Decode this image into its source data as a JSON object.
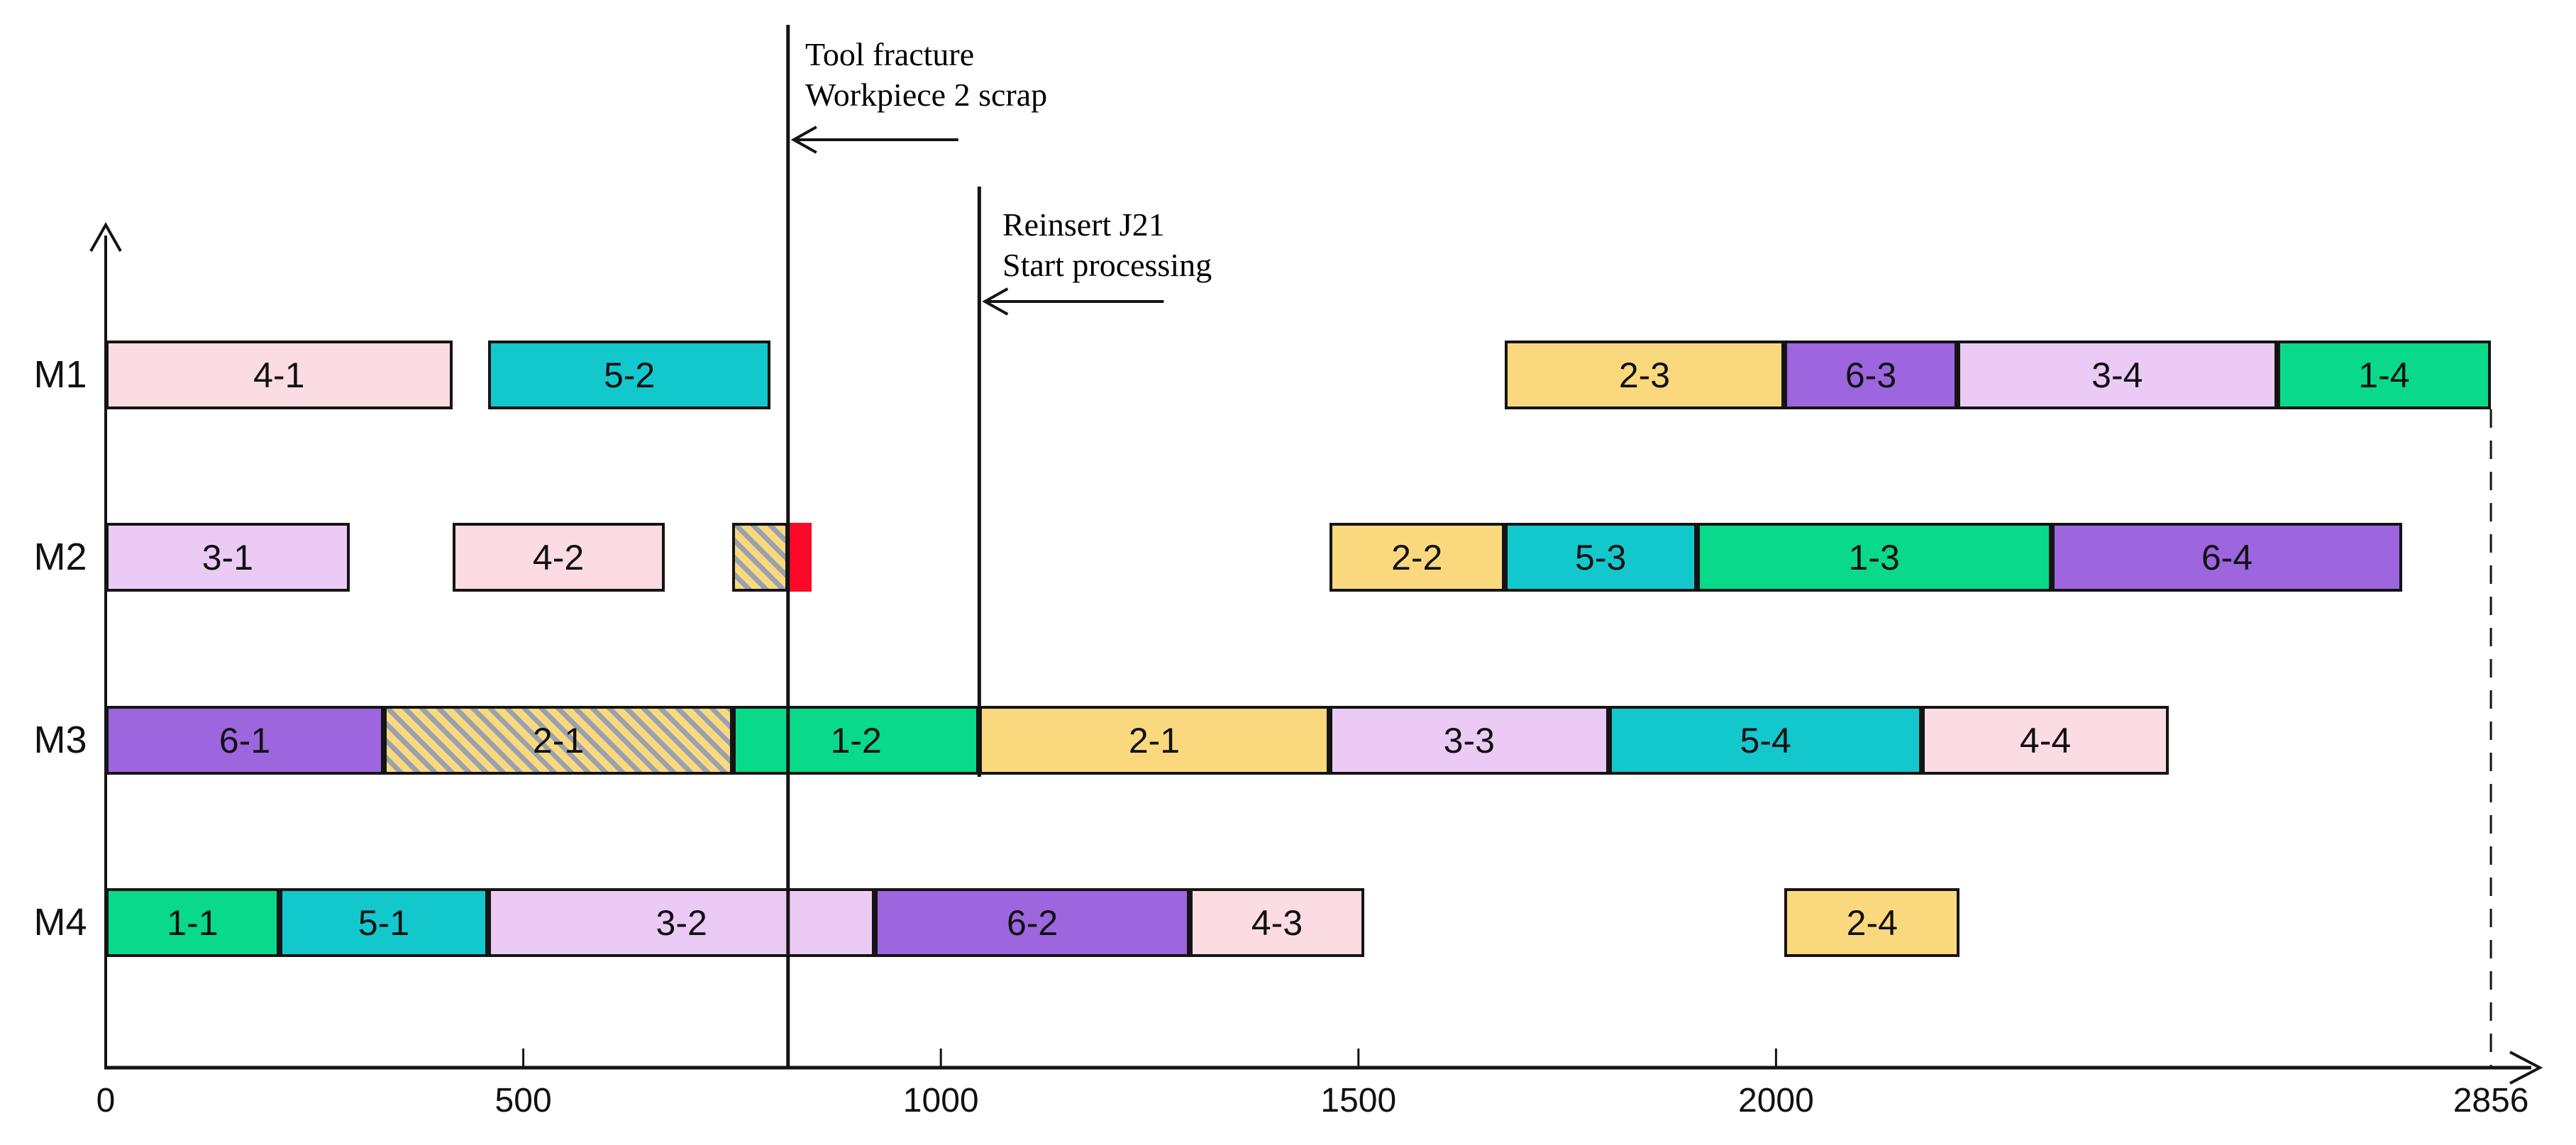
{
  "chart_data": {
    "type": "gantt",
    "title": "",
    "xlabel": "",
    "ylabel": "",
    "x_range": [
      0,
      2856
    ],
    "grid": false,
    "machines": [
      "M1",
      "M2",
      "M3",
      "M4"
    ],
    "x_axis": {
      "ticks": [
        {
          "v": 0,
          "label": "0",
          "mark": false
        },
        {
          "v": 500,
          "label": "500",
          "mark": true
        },
        {
          "v": 1000,
          "label": "1000",
          "mark": true
        },
        {
          "v": 1500,
          "label": "1500",
          "mark": true
        },
        {
          "v": 2000,
          "label": "2000",
          "mark": true
        },
        {
          "v": 2856,
          "label": "2856",
          "mark": false
        }
      ]
    },
    "bars": [
      {
        "machine": "M1",
        "label": "4-1",
        "start": 0,
        "end": 415,
        "color": "#FBDCE2"
      },
      {
        "machine": "M1",
        "label": "5-2",
        "start": 458,
        "end": 796,
        "color": "#13C8CD"
      },
      {
        "machine": "M1",
        "label": "2-3",
        "start": 1675,
        "end": 2010,
        "color": "#FAD97E"
      },
      {
        "machine": "M1",
        "label": "6-3",
        "start": 2010,
        "end": 2217,
        "color": "#9D65DE"
      },
      {
        "machine": "M1",
        "label": "3-4",
        "start": 2217,
        "end": 2600,
        "color": "#EBCBF5"
      },
      {
        "machine": "M1",
        "label": "1-4",
        "start": 2600,
        "end": 2856,
        "color": "#09D98B"
      },
      {
        "machine": "M2",
        "label": "3-1",
        "start": 0,
        "end": 292,
        "color": "#EBCBF5"
      },
      {
        "machine": "M2",
        "label": "4-2",
        "start": 415,
        "end": 669,
        "color": "#FBDCE2"
      },
      {
        "machine": "M2",
        "label": "",
        "start": 750,
        "end": 817,
        "color": "#FAD97E",
        "hatched": true
      },
      {
        "machine": "M2",
        "label": "",
        "start": 817,
        "end": 845,
        "color": "#FA0A28",
        "borderless": true
      },
      {
        "machine": "M2",
        "label": "2-2",
        "start": 1465,
        "end": 1675,
        "color": "#FAD97E"
      },
      {
        "machine": "M2",
        "label": "5-3",
        "start": 1675,
        "end": 1905,
        "color": "#13C8CD"
      },
      {
        "machine": "M2",
        "label": "1-3",
        "start": 1905,
        "end": 2330,
        "color": "#09D98B"
      },
      {
        "machine": "M2",
        "label": "6-4",
        "start": 2330,
        "end": 2750,
        "color": "#9D65DE"
      },
      {
        "machine": "M3",
        "label": "6-1",
        "start": 0,
        "end": 333,
        "color": "#9D65DE"
      },
      {
        "machine": "M3",
        "label": "2-1",
        "start": 333,
        "end": 751,
        "color": "#FAD97E",
        "hatched": true
      },
      {
        "machine": "M3",
        "label": "1-2",
        "start": 751,
        "end": 1046,
        "color": "#09D98B"
      },
      {
        "machine": "M3",
        "label": "2-1",
        "start": 1046,
        "end": 1465,
        "color": "#FAD97E"
      },
      {
        "machine": "M3",
        "label": "3-3",
        "start": 1465,
        "end": 1800,
        "color": "#EBCBF5"
      },
      {
        "machine": "M3",
        "label": "5-4",
        "start": 1800,
        "end": 2175,
        "color": "#13C8CD"
      },
      {
        "machine": "M3",
        "label": "4-4",
        "start": 2175,
        "end": 2470,
        "color": "#FBDCE2"
      },
      {
        "machine": "M4",
        "label": "1-1",
        "start": 0,
        "end": 208,
        "color": "#09D98B"
      },
      {
        "machine": "M4",
        "label": "5-1",
        "start": 208,
        "end": 458,
        "color": "#13C8CD"
      },
      {
        "machine": "M4",
        "label": "3-2",
        "start": 458,
        "end": 921,
        "color": "#EBCBF5"
      },
      {
        "machine": "M4",
        "label": "6-2",
        "start": 921,
        "end": 1298,
        "color": "#9D65DE"
      },
      {
        "machine": "M4",
        "label": "4-3",
        "start": 1298,
        "end": 1507,
        "color": "#FBDCE2"
      },
      {
        "machine": "M4",
        "label": "2-4",
        "start": 2010,
        "end": 2220,
        "color": "#FAD97E"
      }
    ],
    "annotations": [
      {
        "x": 817,
        "lines": [
          "Tool fracture",
          "Workpiece 2 scrap"
        ]
      },
      {
        "x": 1046,
        "lines": [
          "Reinsert J21",
          "Start processing"
        ]
      }
    ],
    "makespan_line": {
      "x": 2856
    }
  },
  "colors": {
    "job1_green": "#09D98B",
    "job2_yellow": "#FAD97E",
    "job3_lavender": "#EBCBF5",
    "job4_pink": "#FBDCE2",
    "job5_teal": "#13C8CD",
    "job6_purple": "#9D65DE",
    "scrap_red": "#FA0A28",
    "hatch_stripe": "#99A1B0",
    "axis_black": "#141414"
  }
}
